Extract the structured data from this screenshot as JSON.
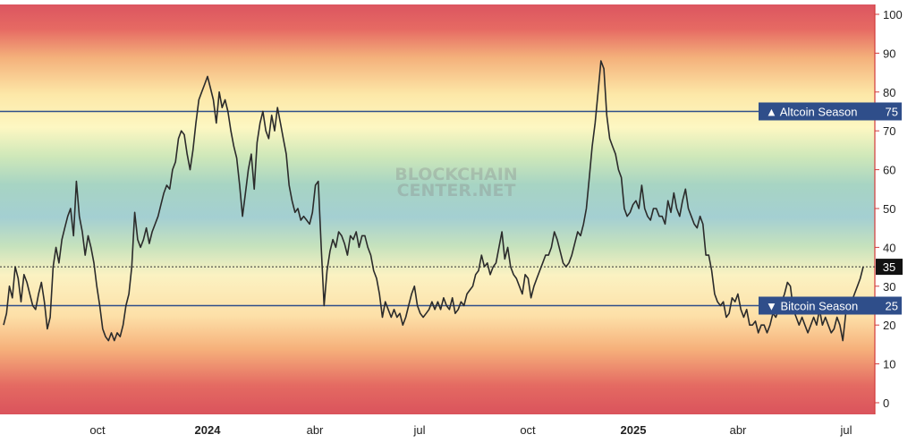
{
  "watermark": [
    "BLOCKCHAIN",
    "CENTER.NET"
  ],
  "colors": {
    "line": "#2b2b2b",
    "threshold_line": "#2f4e8a",
    "label_bg": "#2f4e8a",
    "current_bg": "#111111",
    "axis_line": "#d23b3b"
  },
  "chart_data": {
    "type": "line",
    "y_axis": {
      "min": 0,
      "max": 100,
      "ticks": [
        "0",
        "10",
        "20",
        "30",
        "40",
        "50",
        "60",
        "70",
        "80",
        "90",
        "100"
      ],
      "position": "right"
    },
    "x_ticks": [
      {
        "label": "oct",
        "bold": false
      },
      {
        "label": "2024",
        "bold": true
      },
      {
        "label": "abr",
        "bold": false
      },
      {
        "label": "jul",
        "bold": false
      },
      {
        "label": "oct",
        "bold": false
      },
      {
        "label": "2025",
        "bold": true
      },
      {
        "label": "abr",
        "bold": false
      },
      {
        "label": "jul",
        "bold": false
      }
    ],
    "background": "gradient red (0/100) → orange → yellow → green → blue (~50)",
    "thresholds": [
      {
        "label": "▲ Altcoin Season",
        "value": 75,
        "value_label": "75"
      },
      {
        "label": "▼ Bitcoin Season",
        "value": 25,
        "value_label": "25"
      }
    ],
    "current": {
      "value": 35,
      "value_label": "35"
    },
    "grid": false,
    "series": [
      {
        "values": [
          20,
          23,
          30,
          27,
          35,
          32,
          26,
          33,
          31,
          28,
          25,
          24,
          28,
          31,
          26,
          19,
          22,
          35,
          40,
          36,
          42,
          45,
          48,
          50,
          43,
          57,
          48,
          44,
          38,
          43,
          40,
          36,
          30,
          25,
          19,
          17,
          16,
          18,
          16,
          18,
          17,
          20,
          25,
          28,
          35,
          49,
          42,
          40,
          42,
          45,
          41,
          44,
          46,
          48,
          51,
          54,
          56,
          55,
          60,
          62,
          68,
          70,
          69,
          64,
          60,
          65,
          72,
          78,
          80,
          82,
          84,
          81,
          78,
          72,
          80,
          76,
          78,
          75,
          70,
          66,
          63,
          56,
          48,
          54,
          60,
          64,
          55,
          67,
          72,
          75,
          70,
          68,
          74,
          70,
          76,
          72,
          68,
          64,
          56,
          52,
          49,
          50,
          47,
          48,
          47,
          46,
          49,
          56,
          57,
          40,
          25,
          34,
          39,
          42,
          40,
          44,
          43,
          41,
          38,
          43,
          42,
          44,
          40,
          43,
          43,
          40,
          38,
          34,
          32,
          28,
          22,
          26,
          24,
          22,
          24,
          22,
          23,
          20,
          22,
          25,
          28,
          30,
          25,
          23,
          22,
          23,
          24,
          26,
          24,
          26,
          24,
          27,
          25,
          24,
          27,
          23,
          24,
          26,
          25,
          28,
          29,
          30,
          33,
          34,
          38,
          35,
          36,
          33,
          35,
          36,
          40,
          44,
          37,
          40,
          35,
          33,
          32,
          30,
          28,
          33,
          32,
          27,
          30,
          32,
          34,
          36,
          38,
          38,
          40,
          44,
          42,
          39,
          36,
          35,
          36,
          38,
          41,
          44,
          43,
          46,
          50,
          58,
          66,
          72,
          80,
          88,
          86,
          74,
          68,
          66,
          64,
          60,
          58,
          50,
          48,
          49,
          51,
          52,
          50,
          56,
          50,
          48,
          47,
          50,
          50,
          48,
          48,
          46,
          52,
          49,
          54,
          50,
          48,
          52,
          55,
          50,
          48,
          46,
          45,
          48,
          46,
          38,
          38,
          34,
          28,
          26,
          25,
          26,
          22,
          23,
          27,
          26,
          28,
          24,
          22,
          24,
          20,
          20,
          21,
          18,
          20,
          20,
          18,
          20,
          23,
          22,
          24,
          26,
          28,
          31,
          30,
          24,
          22,
          20,
          22,
          20,
          18,
          20,
          22,
          20,
          24,
          20,
          22,
          20,
          18,
          19,
          22,
          20,
          16,
          23,
          25,
          26,
          28,
          30,
          32,
          35
        ]
      }
    ]
  }
}
